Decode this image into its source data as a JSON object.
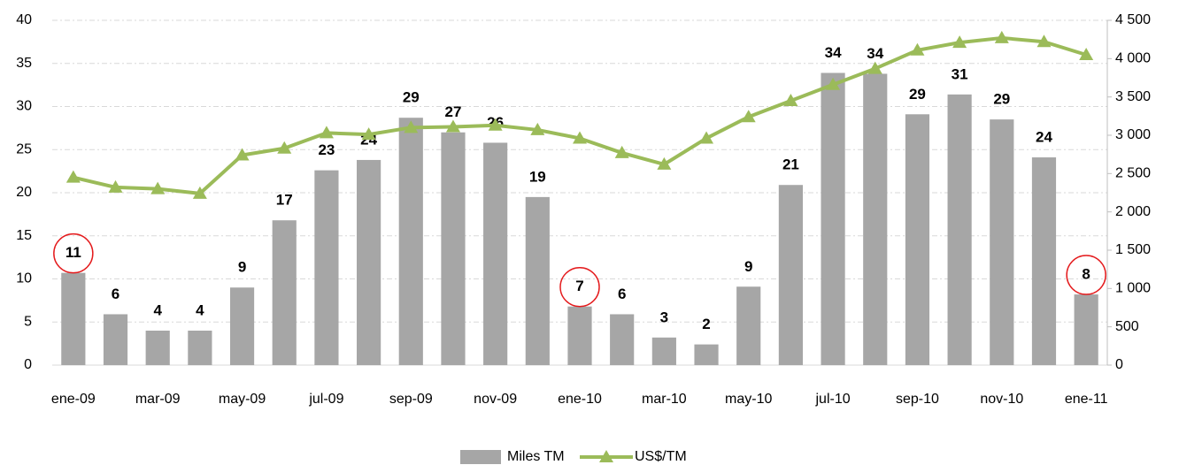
{
  "chart_data": {
    "type": "bar_line",
    "categories": [
      "ene-09",
      null,
      "mar-09",
      null,
      "may-09",
      null,
      "jul-09",
      null,
      "sep-09",
      null,
      "nov-09",
      null,
      "ene-10",
      null,
      "mar-10",
      null,
      "may-10",
      null,
      "jul-10",
      null,
      "sep-10",
      null,
      "nov-10",
      null,
      "ene-11"
    ],
    "series": [
      {
        "name": "Miles TM",
        "color": "#a6a6a6",
        "kind": "bar",
        "axis": "y",
        "values": [
          10.7,
          5.9,
          4.0,
          4.0,
          9.0,
          16.8,
          22.6,
          23.8,
          28.7,
          27.0,
          25.8,
          19.5,
          6.8,
          5.9,
          3.2,
          2.4,
          9.1,
          20.9,
          33.9,
          33.8,
          29.1,
          31.4,
          28.5,
          24.1,
          8.2
        ],
        "value_labels": [
          "11",
          "6",
          "4",
          "4",
          "9",
          "17",
          "23",
          "24",
          "29",
          "27",
          "26",
          "19",
          "7",
          "6",
          "3",
          "2",
          "9",
          "21",
          "34",
          "34",
          "29",
          "31",
          "29",
          "24",
          "8"
        ]
      },
      {
        "name": "US$/TM",
        "color": "#9bbb59",
        "kind": "line",
        "axis": "y2",
        "values": [
          2450,
          2320,
          2300,
          2240,
          2740,
          2830,
          3030,
          3010,
          3100,
          3110,
          3130,
          3070,
          2960,
          2770,
          2620,
          2960,
          3240,
          3450,
          3660,
          3870,
          4110,
          4210,
          4270,
          4220,
          4050
        ]
      }
    ],
    "ylim": [
      0,
      40
    ],
    "yticks": [
      0,
      5,
      10,
      15,
      20,
      25,
      30,
      35,
      40
    ],
    "y2lim": [
      0,
      4500
    ],
    "y2ticks": [
      0,
      500,
      {
        "value": 1000,
        "label": "1 000"
      },
      {
        "value": 1500,
        "label": "1 500"
      },
      {
        "value": 2000,
        "label": "2 000"
      },
      {
        "value": 2500,
        "label": "2 500"
      },
      {
        "value": 3000,
        "label": "3 000"
      },
      {
        "value": 3500,
        "label": "3 500"
      },
      {
        "value": 4000,
        "label": "4 000"
      },
      {
        "value": 4500,
        "label": "4 500"
      }
    ],
    "grid": true,
    "legend": "bottom",
    "highlighted": [
      0,
      12,
      24
    ]
  }
}
